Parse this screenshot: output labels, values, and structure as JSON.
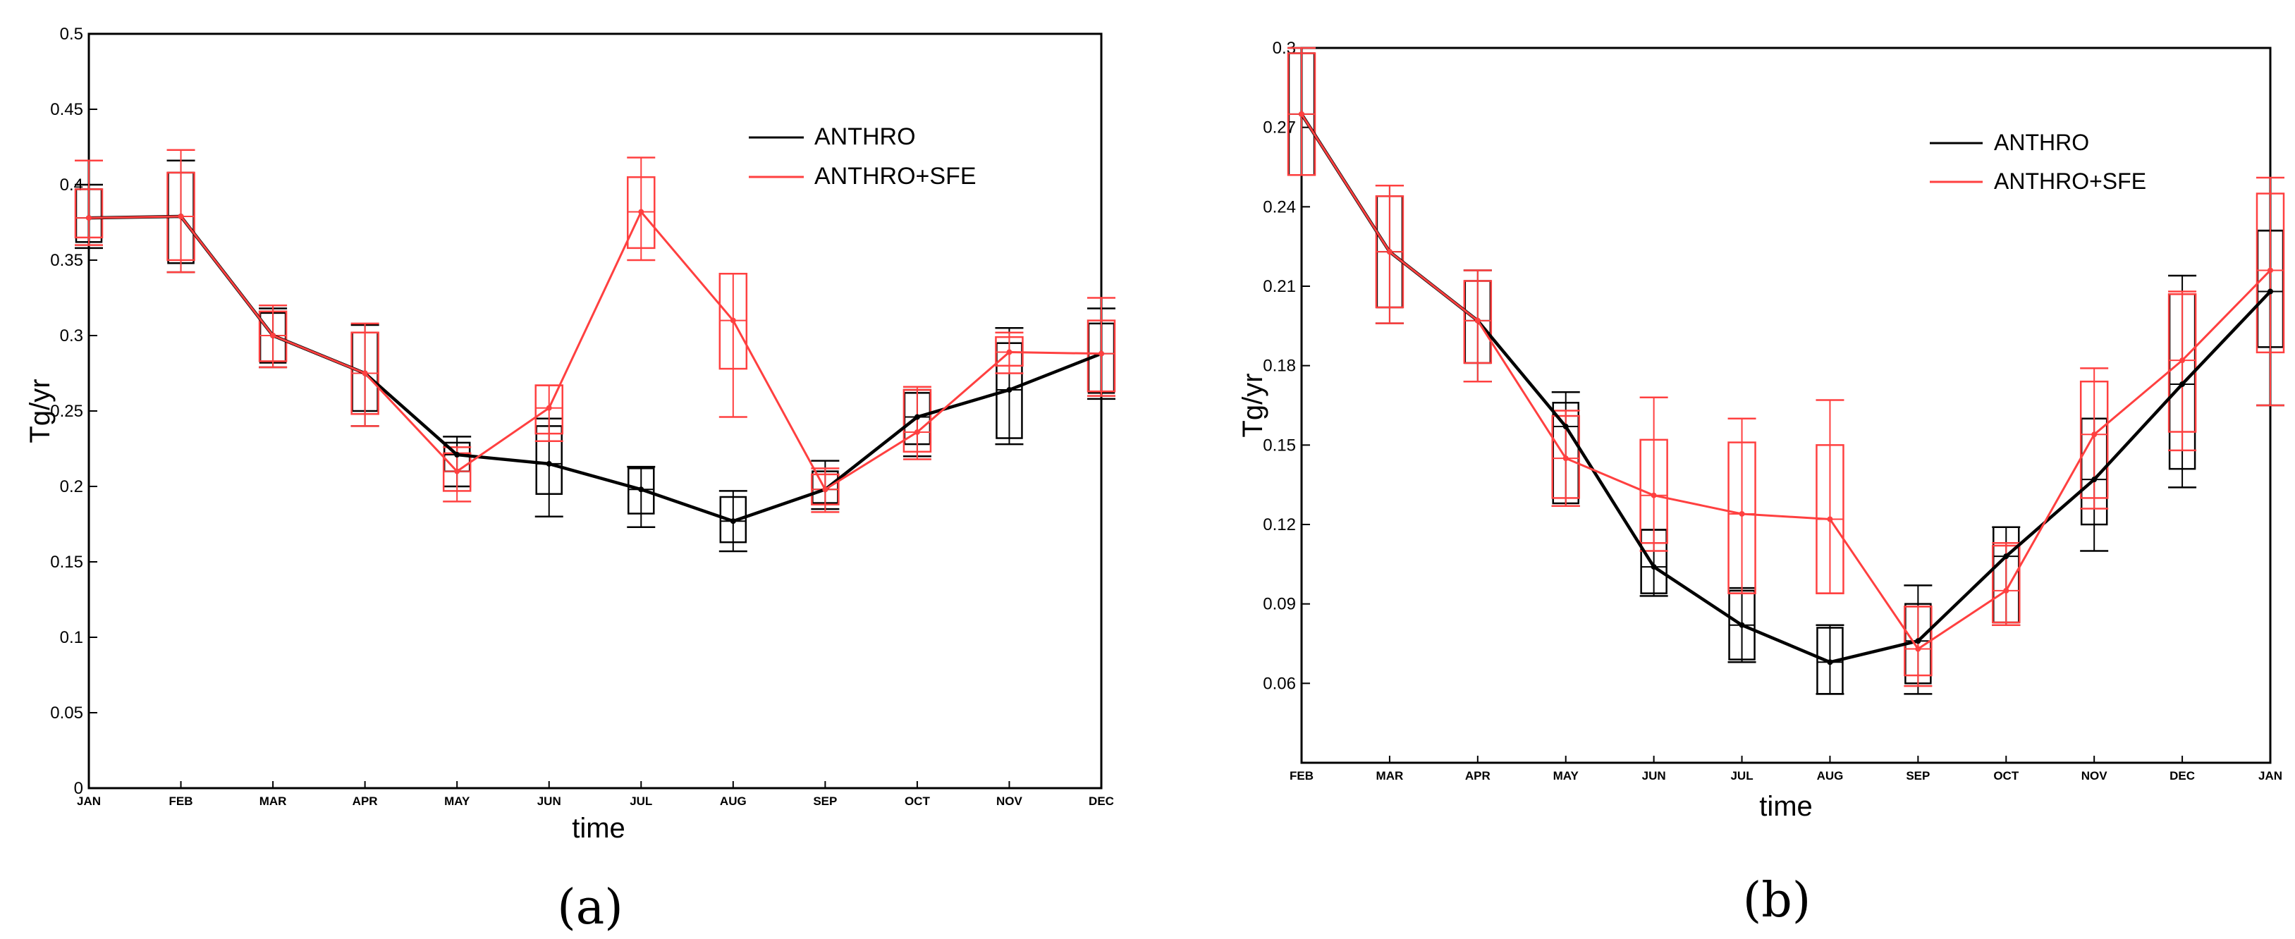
{
  "chart_data": [
    {
      "type": "line",
      "panel_label": "(a)",
      "title": "",
      "xlabel": "time",
      "ylabel": "Tg/yr",
      "categories": [
        "JAN",
        "FEB",
        "MAR",
        "APR",
        "MAY",
        "JUN",
        "JUL",
        "AUG",
        "SEP",
        "OCT",
        "NOV",
        "DEC"
      ],
      "ylim": [
        0,
        0.5
      ],
      "yticks": [
        0,
        0.05,
        0.1,
        0.15,
        0.2,
        0.25,
        0.3,
        0.35,
        0.4,
        0.45,
        0.5
      ],
      "ytick_labels": [
        "0",
        "0.05",
        "0.1",
        "0.15",
        "0.2",
        "0.25",
        "0.3",
        "0.35",
        "0.4",
        "0.45",
        "0.5"
      ],
      "legend": {
        "position": "top-right",
        "entries": [
          "ANTHRO",
          "ANTHRO+SFE"
        ]
      },
      "series": [
        {
          "name": "ANTHRO",
          "color": "#000000",
          "values": [
            0.378,
            0.379,
            0.3,
            0.275,
            0.221,
            0.215,
            0.198,
            0.177,
            0.198,
            0.246,
            0.264,
            0.288
          ],
          "box_low": [
            0.362,
            0.348,
            0.282,
            0.25,
            0.21,
            0.195,
            0.182,
            0.163,
            0.189,
            0.228,
            0.232,
            0.262
          ],
          "box_high": [
            0.397,
            0.408,
            0.315,
            0.302,
            0.229,
            0.24,
            0.212,
            0.193,
            0.21,
            0.262,
            0.295,
            0.308
          ],
          "whisker_low": [
            0.358,
            0.342,
            0.279,
            0.24,
            0.2,
            0.18,
            0.173,
            0.157,
            0.185,
            0.22,
            0.228,
            0.258
          ],
          "whisker_high": [
            0.4,
            0.416,
            0.318,
            0.307,
            0.233,
            0.245,
            0.213,
            0.197,
            0.217,
            0.264,
            0.305,
            0.318
          ]
        },
        {
          "name": "ANTHRO+SFE",
          "color": "#ff4040",
          "values": [
            0.378,
            0.379,
            0.3,
            0.275,
            0.21,
            0.252,
            0.382,
            0.31,
            0.198,
            0.236,
            0.289,
            0.288
          ],
          "box_low": [
            0.365,
            0.35,
            0.283,
            0.248,
            0.197,
            0.235,
            0.358,
            0.278,
            0.188,
            0.223,
            0.28,
            0.263
          ],
          "box_high": [
            0.397,
            0.408,
            0.316,
            0.302,
            0.222,
            0.267,
            0.405,
            0.341,
            0.208,
            0.264,
            0.299,
            0.31
          ],
          "whisker_low": [
            0.36,
            0.342,
            0.279,
            0.24,
            0.19,
            0.23,
            0.35,
            0.246,
            0.183,
            0.218,
            0.275,
            0.26
          ],
          "whisker_high": [
            0.416,
            0.423,
            0.32,
            0.308,
            0.226,
            0.267,
            0.418,
            0.341,
            0.212,
            0.266,
            0.302,
            0.325
          ]
        }
      ]
    },
    {
      "type": "line",
      "panel_label": "(b)",
      "title": "",
      "xlabel": "time",
      "ylabel": "Tg/yr",
      "categories": [
        "FEB",
        "MAR",
        "APR",
        "MAY",
        "JUN",
        "JUL",
        "AUG",
        "SEP",
        "OCT",
        "NOV",
        "DEC",
        "JAN"
      ],
      "ylim": [
        0.03,
        0.3
      ],
      "yticks": [
        0.06,
        0.09,
        0.12,
        0.15,
        0.18,
        0.21,
        0.24,
        0.27,
        0.3
      ],
      "ytick_labels": [
        "0.06",
        "0.09",
        "0.12",
        "0.15",
        "0.18",
        "0.21",
        "0.24",
        "0.27",
        "0.3"
      ],
      "legend": {
        "position": "top-right",
        "entries": [
          "ANTHRO",
          "ANTHRO+SFE"
        ]
      },
      "series": [
        {
          "name": "ANTHRO",
          "color": "#000000",
          "values": [
            0.275,
            0.223,
            0.197,
            0.157,
            0.104,
            0.082,
            0.068,
            0.076,
            0.108,
            0.137,
            0.173,
            0.208
          ],
          "box_low": [
            0.252,
            0.202,
            0.181,
            0.128,
            0.094,
            0.069,
            0.056,
            0.06,
            0.083,
            0.12,
            0.141,
            0.187
          ],
          "box_high": [
            0.298,
            0.244,
            0.212,
            0.166,
            0.118,
            0.095,
            0.081,
            0.09,
            0.119,
            0.16,
            0.207,
            0.231
          ],
          "whisker_low": [
            0.252,
            0.196,
            0.174,
            0.127,
            0.093,
            0.068,
            0.056,
            0.056,
            0.082,
            0.11,
            0.134,
            0.165
          ],
          "whisker_high": [
            0.3,
            0.248,
            0.216,
            0.17,
            0.118,
            0.096,
            0.082,
            0.097,
            0.119,
            0.16,
            0.214,
            0.231
          ]
        },
        {
          "name": "ANTHRO+SFE",
          "color": "#ff4040",
          "values": [
            0.275,
            0.223,
            0.197,
            0.145,
            0.131,
            0.124,
            0.122,
            0.073,
            0.095,
            0.154,
            0.182,
            0.216
          ],
          "box_low": [
            0.252,
            0.202,
            0.181,
            0.13,
            0.113,
            0.094,
            0.094,
            0.063,
            0.083,
            0.13,
            0.155,
            0.185
          ],
          "box_high": [
            0.298,
            0.244,
            0.212,
            0.161,
            0.152,
            0.151,
            0.15,
            0.089,
            0.112,
            0.174,
            0.207,
            0.245
          ],
          "whisker_low": [
            0.252,
            0.196,
            0.174,
            0.127,
            0.11,
            0.094,
            0.094,
            0.059,
            0.082,
            0.126,
            0.148,
            0.165
          ],
          "whisker_high": [
            0.3,
            0.248,
            0.216,
            0.163,
            0.168,
            0.16,
            0.167,
            0.089,
            0.113,
            0.179,
            0.208,
            0.251
          ]
        }
      ]
    }
  ]
}
